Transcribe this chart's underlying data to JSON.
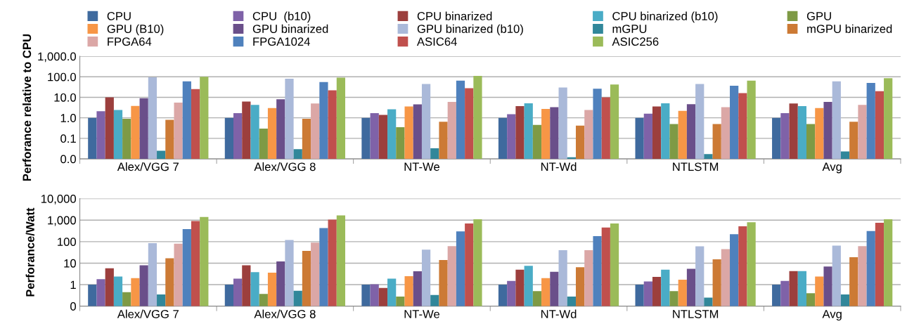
{
  "chart_data": [
    {
      "type": "bar",
      "ylabel": "Perforance relative to CPU",
      "categories": [
        "Alex/VGG 7",
        "Alex/VGG 8",
        "NT-We",
        "NT-Wd",
        "NTLSTM",
        "Avg"
      ],
      "log": "y",
      "ylim": [
        0.01,
        1000
      ],
      "yticks": [
        {
          "value": 0.01,
          "label": "0.0"
        },
        {
          "value": 0.1,
          "label": "0.1"
        },
        {
          "value": 1,
          "label": "1.0"
        },
        {
          "value": 10,
          "label": "10.0"
        },
        {
          "value": 100,
          "label": "100.0"
        },
        {
          "value": 1000,
          "label": "1,000.0"
        }
      ],
      "grid": "y",
      "legend": "top",
      "series": [
        {
          "name": "CPU",
          "color": "#3f6a9e",
          "values": [
            1,
            1,
            1,
            1,
            1,
            1
          ]
        },
        {
          "name": "CPU  (b10)",
          "color": "#7f62a8",
          "values": [
            2.1,
            1.7,
            1.7,
            1.5,
            1.6,
            1.7
          ]
        },
        {
          "name": "CPU binarized",
          "color": "#9c3f3d",
          "values": [
            10,
            6.2,
            1.4,
            3.7,
            3.6,
            5
          ]
        },
        {
          "name": "CPU binarized (b10)",
          "color": "#4aacc6",
          "values": [
            2.4,
            4.3,
            2.6,
            5.1,
            5.1,
            3.7
          ]
        },
        {
          "name": "GPU",
          "color": "#7e9a45",
          "values": [
            0.9,
            0.3,
            0.35,
            0.45,
            0.5,
            0.5
          ]
        },
        {
          "name": "GPU (B10)",
          "color": "#f79646",
          "values": [
            3.8,
            3.0,
            3.6,
            2.7,
            2.2,
            3.0
          ]
        },
        {
          "name": "GPU binarized",
          "color": "#6a4f8a",
          "values": [
            9,
            8,
            4.5,
            3.3,
            4.6,
            6
          ]
        },
        {
          "name": "GPU binarized (b10)",
          "color": "#aab9d9",
          "values": [
            95,
            80,
            45,
            30,
            45,
            60
          ]
        },
        {
          "name": "mGPU",
          "color": "#31879a",
          "values": [
            0.025,
            0.03,
            0.033,
            0.012,
            0.017,
            0.023
          ]
        },
        {
          "name": "mGPU binarized",
          "color": "#cc7a35",
          "values": [
            0.8,
            0.9,
            0.65,
            0.42,
            0.5,
            0.65
          ]
        },
        {
          "name": "FPGA64",
          "color": "#dba7a6",
          "values": [
            5.5,
            5,
            6,
            2.4,
            3.3,
            4.3
          ]
        },
        {
          "name": "FPGA1024",
          "color": "#4f81bd",
          "values": [
            60,
            55,
            65,
            26,
            37,
            50
          ]
        },
        {
          "name": "ASIC64",
          "color": "#c0504d",
          "values": [
            25,
            22,
            28,
            10,
            16,
            20
          ]
        },
        {
          "name": "ASIC256",
          "color": "#9bbb59",
          "values": [
            100,
            90,
            110,
            42,
            65,
            85
          ]
        }
      ]
    },
    {
      "type": "bar",
      "ylabel": "Perforance/Watt",
      "categories": [
        "Alex/VGG 7",
        "Alex/VGG 8",
        "NT-We",
        "NT-Wd",
        "NTLSTM",
        "Avg"
      ],
      "log": "y",
      "ylim": [
        0.1,
        10000
      ],
      "yticks": [
        {
          "value": 0.1,
          "label": "0"
        },
        1,
        10,
        100,
        {
          "value": 1000,
          "label": "1,000"
        },
        {
          "value": 10000,
          "label": "10,000"
        }
      ],
      "grid": "y",
      "series": [
        {
          "color": "#3f6a9e",
          "values": [
            1,
            1,
            1,
            1,
            1,
            1
          ]
        },
        {
          "color": "#7f62a8",
          "values": [
            1.8,
            1.9,
            1.05,
            1.5,
            1.4,
            1.5
          ]
        },
        {
          "color": "#9c3f3d",
          "values": [
            5.8,
            8,
            0.7,
            5,
            2.3,
            4.3
          ]
        },
        {
          "color": "#4aacc6",
          "values": [
            2.4,
            3.8,
            1.9,
            7.5,
            5,
            4.3
          ]
        },
        {
          "color": "#7e9a45",
          "values": [
            0.45,
            0.37,
            0.28,
            0.5,
            0.5,
            0.4
          ]
        },
        {
          "color": "#f79646",
          "values": [
            2.0,
            3.6,
            2.5,
            2.0,
            1.7,
            2.4
          ]
        },
        {
          "color": "#6a4f8a",
          "values": [
            8,
            12,
            4.2,
            4,
            5.5,
            7
          ]
        },
        {
          "color": "#aab9d9",
          "values": [
            85,
            120,
            42,
            40,
            60,
            65
          ]
        },
        {
          "color": "#31879a",
          "values": [
            0.35,
            0.52,
            0.33,
            0.28,
            0.25,
            0.35
          ]
        },
        {
          "color": "#cc7a35",
          "values": [
            17,
            37,
            14,
            6.5,
            15,
            19
          ]
        },
        {
          "color": "#dba7a6",
          "values": [
            80,
            90,
            62,
            40,
            45,
            62
          ]
        },
        {
          "color": "#4f81bd",
          "values": [
            380,
            430,
            300,
            180,
            220,
            310
          ]
        },
        {
          "color": "#c0504d",
          "values": [
            900,
            1050,
            700,
            450,
            520,
            750
          ]
        },
        {
          "color": "#9bbb59",
          "values": [
            1400,
            1650,
            1100,
            700,
            800,
            1100
          ]
        }
      ]
    }
  ]
}
